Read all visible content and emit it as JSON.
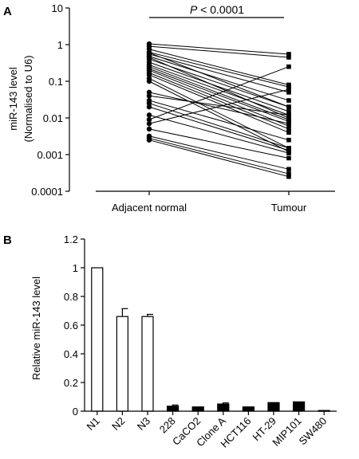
{
  "panels": {
    "a_label": "A",
    "b_label": "B"
  },
  "chart_data": [
    {
      "type": "line",
      "scale": "log",
      "ylabel": "miR-143 level",
      "ylabel_sub": "(Normalised to U6)",
      "yticks": [
        "10",
        "1",
        "0.1",
        "0.01",
        "0.001",
        "0.0001"
      ],
      "ylim": [
        0.0001,
        10
      ],
      "categories": [
        "Adjacent normal",
        "Tumour"
      ],
      "annotation": {
        "p_label": "P",
        "p_rest": " < 0.0001"
      },
      "pairs": [
        [
          1.05,
          0.55
        ],
        [
          0.9,
          0.45
        ],
        [
          0.75,
          0.08
        ],
        [
          0.62,
          0.07
        ],
        [
          0.55,
          0.05
        ],
        [
          0.48,
          0.03
        ],
        [
          0.4,
          0.02
        ],
        [
          0.33,
          0.015
        ],
        [
          0.28,
          0.012
        ],
        [
          0.25,
          0.009
        ],
        [
          0.22,
          0.008
        ],
        [
          0.2,
          0.006
        ],
        [
          0.17,
          0.005
        ],
        [
          0.15,
          0.004
        ],
        [
          0.12,
          0.0015
        ],
        [
          0.1,
          0.0012
        ],
        [
          0.05,
          0.007
        ],
        [
          0.04,
          0.012
        ],
        [
          0.03,
          0.0025
        ],
        [
          0.025,
          0.0015
        ],
        [
          0.02,
          0.0013
        ],
        [
          0.012,
          0.0011
        ],
        [
          0.009,
          0.25
        ],
        [
          0.007,
          0.06
        ],
        [
          0.005,
          0.0008
        ],
        [
          0.0032,
          0.0004
        ],
        [
          0.0028,
          0.0003
        ],
        [
          0.0025,
          0.00025
        ],
        [
          0.6,
          0.02
        ],
        [
          0.45,
          0.01
        ]
      ]
    },
    {
      "type": "bar",
      "ylabel": "Relative miR-143 level",
      "ylim": [
        0,
        1.2
      ],
      "yticks": [
        "0",
        "0.2",
        "0.4",
        "0.6",
        "0.8",
        "1",
        "1.2"
      ],
      "categories": [
        "N1",
        "N2",
        "N3",
        "228",
        "CaCO2",
        "Clone A",
        "HCT116",
        "HT-29",
        "MIP101",
        "SW480"
      ],
      "values": [
        1.0,
        0.66,
        0.66,
        0.035,
        0.03,
        0.05,
        0.03,
        0.06,
        0.065,
        0.005
      ],
      "errors": [
        0,
        0.055,
        0.015,
        0.008,
        0,
        0.008,
        0,
        0,
        0,
        0
      ],
      "bar_colors": [
        "#ffffff",
        "#ffffff",
        "#ffffff",
        "#000000",
        "#000000",
        "#000000",
        "#000000",
        "#000000",
        "#000000",
        "#000000"
      ]
    }
  ]
}
